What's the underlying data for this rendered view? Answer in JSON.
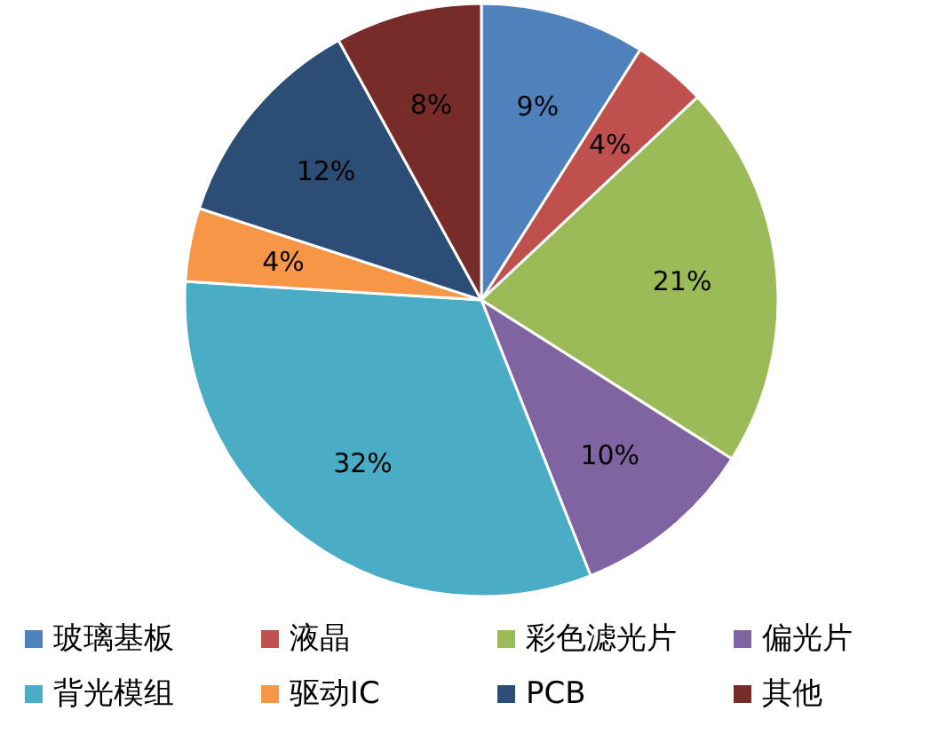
{
  "chart_data": {
    "type": "pie",
    "categories": [
      "玻璃基板",
      "液晶",
      "彩色滤光片",
      "偏光片",
      "背光模组",
      "驱动IC",
      "PCB",
      "其他"
    ],
    "values": [
      9,
      4,
      21,
      10,
      32,
      4,
      12,
      8
    ],
    "colors": [
      "#4f81bd",
      "#c0504d",
      "#9bbb59",
      "#8064a2",
      "#4bacc6",
      "#f79646",
      "#2c4d75",
      "#772c2a"
    ],
    "value_labels": [
      "9%",
      "4%",
      "21%",
      "10%",
      "32%",
      "4%",
      "12%",
      "8%"
    ],
    "legend": "bottom"
  }
}
